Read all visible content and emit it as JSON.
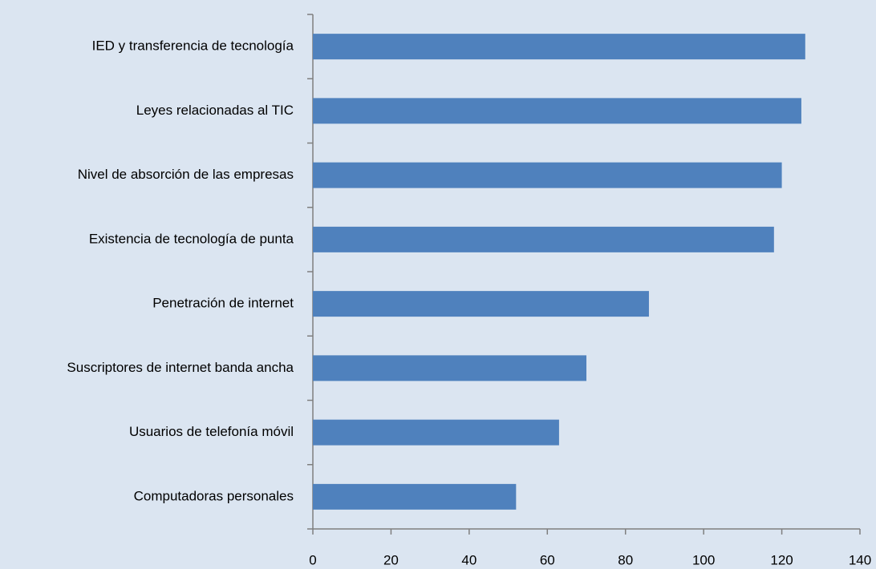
{
  "chart_data": {
    "type": "bar",
    "orientation": "horizontal",
    "categories": [
      "IED y transferencia de tecnología",
      "Leyes relacionadas al TIC",
      "Nivel de absorción de las empresas",
      "Existencia de tecnología de punta",
      "Penetración de internet",
      "Suscriptores de internet banda ancha",
      "Usuarios de telefonía móvil",
      "Computadoras personales"
    ],
    "values": [
      126,
      125,
      120,
      118,
      86,
      70,
      63,
      52
    ],
    "color": "#4f81bd",
    "xlim": [
      0,
      140
    ],
    "xticks": [
      0,
      20,
      40,
      60,
      80,
      100,
      120,
      140
    ],
    "grid": false
  }
}
